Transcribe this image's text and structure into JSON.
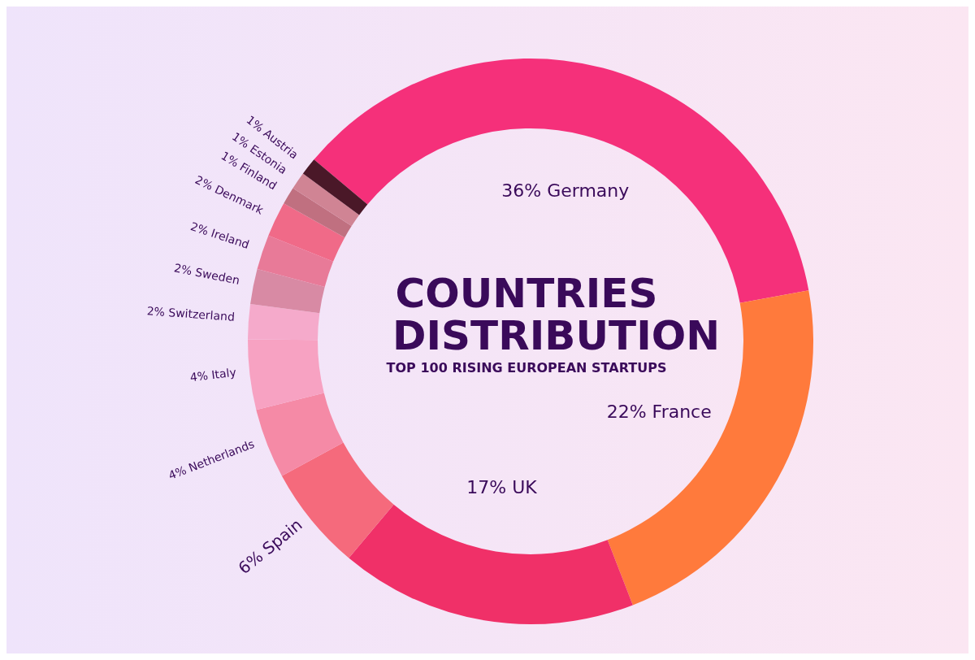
{
  "chart_data": {
    "type": "donut",
    "title": "COUNTRIES DISTRIBUTION",
    "subtitle": "TOP 100 RISING EUROPEAN STARTUPS",
    "categories": [
      "Germany",
      "France",
      "UK",
      "Spain",
      "Netherlands",
      "Italy",
      "Switzerland",
      "Sweden",
      "Ireland",
      "Denmark",
      "Finland",
      "Estonia",
      "Austria"
    ],
    "values": [
      36,
      22,
      17,
      6,
      4,
      4,
      2,
      2,
      2,
      2,
      1,
      1,
      1
    ],
    "value_labels": [
      "36%",
      "22%",
      "17%",
      "6%",
      "4%",
      "4%",
      "2%",
      "2%",
      "2%",
      "2%",
      "1%",
      "1%",
      "1%"
    ],
    "colors": [
      "#f5307a",
      "#ff7a3c",
      "#f03068",
      "#f56a7c",
      "#f58aa6",
      "#f7a2c2",
      "#f5aacb",
      "#d88aa4",
      "#e87a98",
      "#f06a88",
      "#c07080",
      "#d08494",
      "#4a1828"
    ],
    "legend": false
  }
}
